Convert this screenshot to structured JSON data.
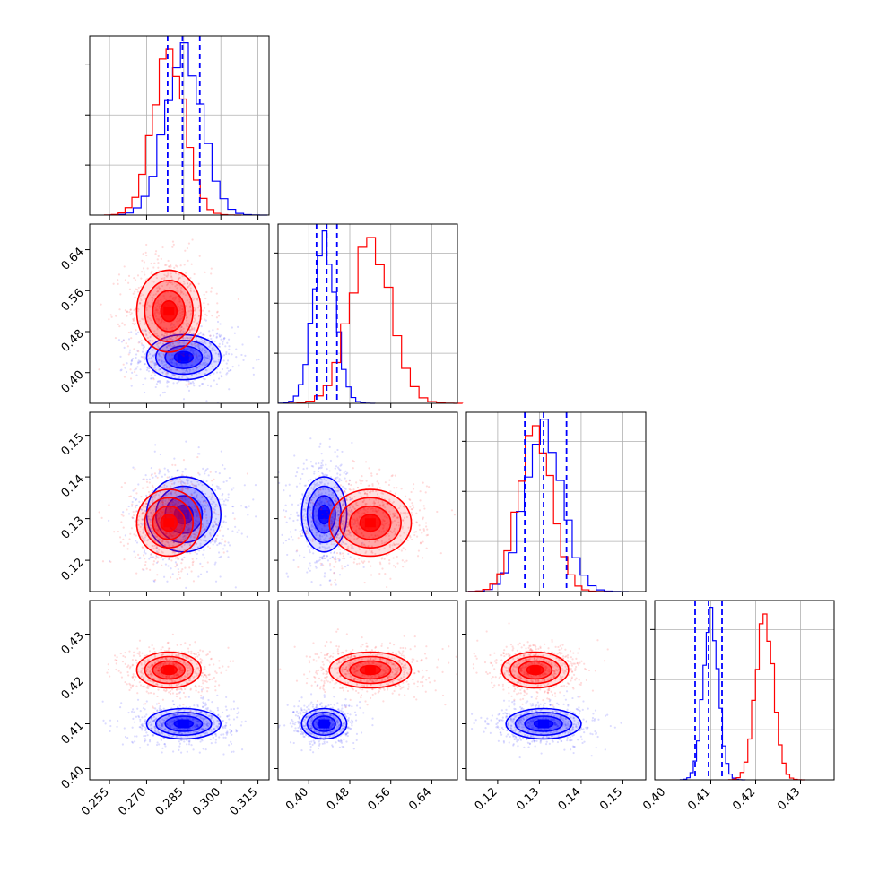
{
  "chart_data": {
    "type": "corner",
    "title": "",
    "parameters": [
      {
        "ticks": [
          "0.255",
          "0.270",
          "0.285",
          "0.300",
          "0.315"
        ],
        "tick_values": [
          0.255,
          0.27,
          0.285,
          0.3,
          0.315
        ],
        "range": [
          0.247,
          0.3195
        ]
      },
      {
        "ticks": [
          "0.40",
          "0.48",
          "0.56",
          "0.64"
        ],
        "tick_values": [
          0.4,
          0.48,
          0.56,
          0.64
        ],
        "range": [
          0.34,
          0.69
        ]
      },
      {
        "ticks": [
          "0.12",
          "0.13",
          "0.14",
          "0.15"
        ],
        "tick_values": [
          0.12,
          0.13,
          0.14,
          0.15
        ],
        "range": [
          0.1125,
          0.1555
        ]
      },
      {
        "ticks": [
          "0.40",
          "0.41",
          "0.42",
          "0.43"
        ],
        "tick_values": [
          0.4,
          0.41,
          0.42,
          0.43
        ],
        "range": [
          0.3975,
          0.4375
        ]
      }
    ],
    "grid": true,
    "series": [
      {
        "color": "#0000ff",
        "mean": [
          0.285,
          0.43,
          0.131,
          0.41
        ],
        "sd": [
          0.0075,
          0.022,
          0.0045,
          0.0017
        ],
        "quantiles_marked": true
      },
      {
        "color": "#ff0000",
        "mean": [
          0.279,
          0.52,
          0.129,
          0.422
        ],
        "sd": [
          0.0065,
          0.04,
          0.004,
          0.002
        ],
        "quantiles_marked": false
      }
    ],
    "quantile_lines": [
      {
        "param": 0,
        "values": [
          0.2785,
          0.2845,
          0.2915
        ]
      },
      {
        "param": 1,
        "values": [
          0.415,
          0.435,
          0.455
        ]
      },
      {
        "param": 2,
        "values": [
          0.1265,
          0.131,
          0.1365
        ]
      },
      {
        "param": 3,
        "values": [
          0.4065,
          0.4095,
          0.4125
        ]
      }
    ],
    "contour_levels": [
      0.5,
      1.0,
      1.5,
      2.0
    ]
  }
}
